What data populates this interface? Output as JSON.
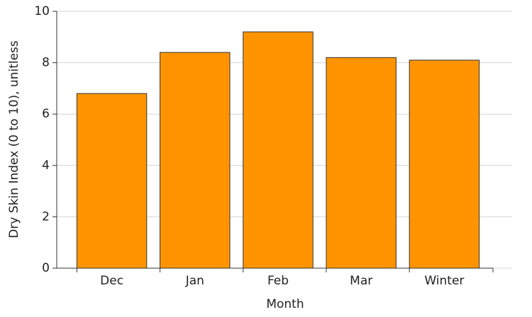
{
  "chart_data": {
    "type": "bar",
    "x_label": "Month",
    "y_label": "Dry Skin Index (0 to 10), unitless",
    "categories": [
      "Dec",
      "Jan",
      "Feb",
      "Mar",
      "Winter"
    ],
    "values": [
      6.8,
      8.4,
      9.2,
      8.2,
      8.1
    ],
    "color": "#ff9400",
    "ylim": [
      0,
      10
    ],
    "yticks": [
      0,
      2,
      4,
      6,
      8,
      10
    ],
    "grid": true
  }
}
